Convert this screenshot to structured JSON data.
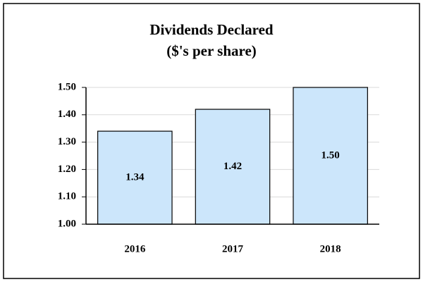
{
  "chart_data": {
    "type": "bar",
    "title": "Dividends Declared",
    "subtitle": "($'s per share)",
    "categories": [
      "2016",
      "2017",
      "2018"
    ],
    "values": [
      1.34,
      1.42,
      1.5
    ],
    "value_labels": [
      "1.34",
      "1.42",
      "1.50"
    ],
    "color": "#cce6fb",
    "ylim": [
      1.0,
      1.5
    ],
    "yticks": [
      {
        "value": 1.0,
        "label": "1.00"
      },
      {
        "value": 1.1,
        "label": "1.10"
      },
      {
        "value": 1.2,
        "label": "1.20"
      },
      {
        "value": 1.3,
        "label": "1.30"
      },
      {
        "value": 1.4,
        "label": "1.40"
      },
      {
        "value": 1.5,
        "label": "1.50"
      }
    ],
    "grid": true
  }
}
